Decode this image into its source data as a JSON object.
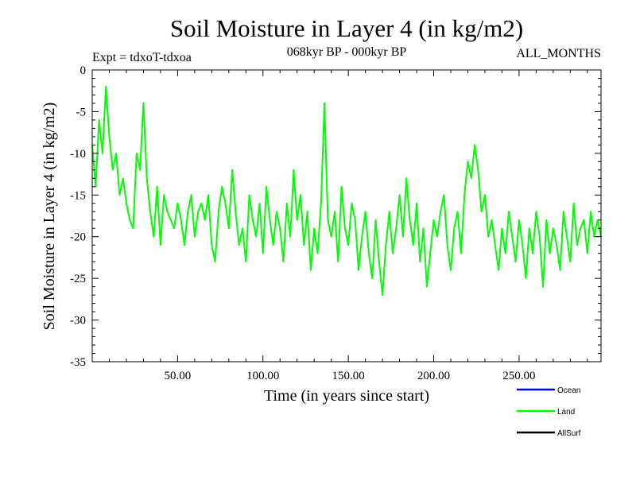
{
  "chart_data": {
    "type": "line",
    "title": "Soil Moisture in Layer 4 (in kg/m2)",
    "subtitle_left": "Expt = tdxoT-tdxoa",
    "subtitle_center": "068kyr BP - 000kyr BP",
    "subtitle_right": "ALL_MONTHS",
    "xlabel": "Time (in years since start)",
    "ylabel": "Soil Moisture in Layer 4 (in kg/m2)",
    "xlim": [
      0,
      298
    ],
    "ylim": [
      -35,
      0
    ],
    "xticks": [
      50,
      100,
      150,
      200,
      250
    ],
    "xtick_labels": [
      "50.00",
      "100.00",
      "150.00",
      "200.00",
      "250.00"
    ],
    "yticks": [
      0,
      -5,
      -10,
      -15,
      -20,
      -25,
      -30,
      -35
    ],
    "ytick_labels": [
      "0",
      "-5",
      "-10",
      "-15",
      "-20",
      "-25",
      "-30",
      "-35"
    ],
    "legend_position": "bottom-right",
    "series": [
      {
        "name": "Ocean",
        "color": "#0000ff",
        "values": []
      },
      {
        "name": "Land",
        "color": "#00ff00",
        "x": [
          0,
          2,
          4,
          6,
          8,
          10,
          12,
          14,
          16,
          18,
          20,
          22,
          24,
          26,
          28,
          30,
          32,
          34,
          36,
          38,
          40,
          42,
          44,
          46,
          48,
          50,
          52,
          54,
          56,
          58,
          60,
          62,
          64,
          66,
          68,
          70,
          72,
          74,
          76,
          78,
          80,
          82,
          84,
          86,
          88,
          90,
          92,
          94,
          96,
          98,
          100,
          102,
          104,
          106,
          108,
          110,
          112,
          114,
          116,
          118,
          120,
          122,
          124,
          126,
          128,
          130,
          132,
          134,
          136,
          138,
          140,
          142,
          144,
          146,
          148,
          150,
          152,
          154,
          156,
          158,
          160,
          162,
          164,
          166,
          168,
          170,
          172,
          174,
          176,
          178,
          180,
          182,
          184,
          186,
          188,
          190,
          192,
          194,
          196,
          198,
          200,
          202,
          204,
          206,
          208,
          210,
          212,
          214,
          216,
          218,
          220,
          222,
          224,
          226,
          228,
          230,
          232,
          234,
          236,
          238,
          240,
          242,
          244,
          246,
          248,
          250,
          252,
          254,
          256,
          258,
          260,
          262,
          264,
          266,
          268,
          270,
          272,
          274,
          276,
          278,
          280,
          282,
          284,
          286,
          288,
          290,
          292,
          294,
          296,
          298
        ],
        "values": [
          -9,
          -14,
          -6,
          -10,
          -2,
          -8,
          -12,
          -10,
          -15,
          -13,
          -16,
          -18,
          -19,
          -10,
          -12,
          -4,
          -13,
          -17,
          -20,
          -14,
          -21,
          -15,
          -17,
          -18,
          -19,
          -16,
          -18,
          -21,
          -17,
          -15,
          -20,
          -17,
          -16,
          -18,
          -15,
          -21,
          -23,
          -17,
          -14,
          -16,
          -19,
          -12,
          -17,
          -21,
          -19,
          -23,
          -15,
          -18,
          -20,
          -16,
          -22,
          -14,
          -18,
          -21,
          -17,
          -19,
          -23,
          -16,
          -20,
          -12,
          -18,
          -15,
          -21,
          -17,
          -24,
          -19,
          -22,
          -16,
          -4,
          -18,
          -20,
          -17,
          -23,
          -14,
          -19,
          -21,
          -16,
          -18,
          -24,
          -20,
          -17,
          -22,
          -25,
          -18,
          -23,
          -27,
          -21,
          -17,
          -22,
          -19,
          -15,
          -20,
          -13,
          -18,
          -21,
          -16,
          -23,
          -19,
          -26,
          -22,
          -18,
          -20,
          -17,
          -15,
          -21,
          -24,
          -19,
          -17,
          -22,
          -15,
          -11,
          -13,
          -9,
          -12,
          -17,
          -15,
          -20,
          -18,
          -21,
          -24,
          -19,
          -22,
          -17,
          -20,
          -23,
          -18,
          -21,
          -25,
          -19,
          -22,
          -17,
          -20,
          -26,
          -18,
          -22,
          -19,
          -21,
          -24,
          -17,
          -20,
          -23,
          -16,
          -21,
          -19,
          -18,
          -22,
          -17,
          -20,
          -18,
          -20
        ]
      },
      {
        "name": "AllSurf",
        "color": "#000000",
        "values": []
      }
    ]
  }
}
